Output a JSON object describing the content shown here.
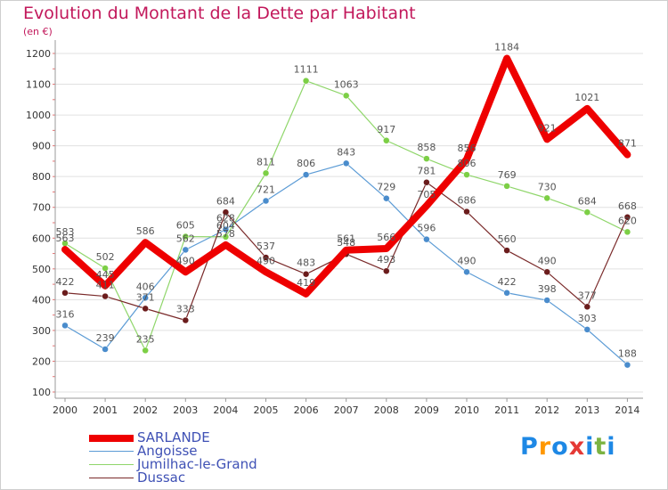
{
  "title": "Evolution du Montant de la Dette par Habitant",
  "unit_label": "(en €)",
  "logo_text": "Proxiti",
  "colors": {
    "title": "#c2185b",
    "axis_text": "#333333",
    "grid": "#e0e0e0",
    "legend_text": "#3f51b5",
    "label_text": "#555555"
  },
  "chart_data": {
    "type": "line",
    "title": "Evolution du Montant de la Dette par Habitant",
    "ylabel": "(en €)",
    "xlabel": "",
    "categories": [
      "2000",
      "2001",
      "2002",
      "2003",
      "2004",
      "2005",
      "2006",
      "2007",
      "2008",
      "2009",
      "2010",
      "2011",
      "2012",
      "2013",
      "2014"
    ],
    "ylim": [
      100,
      1200
    ],
    "yticks": [
      100,
      200,
      300,
      400,
      500,
      600,
      700,
      800,
      900,
      1000,
      1100,
      1200
    ],
    "grid": "horizontal",
    "legend_position": "bottom-left",
    "series": [
      {
        "name": "SARLANDE",
        "color": "#ee0000",
        "width": 8,
        "marker": "none",
        "values": [
          563,
          445,
          586,
          490,
          578,
          490,
          419,
          561,
          566,
          705,
          856,
          1184,
          921,
          1021,
          871
        ]
      },
      {
        "name": "Angoisse",
        "color": "#5b9bd5",
        "width": 1.2,
        "marker": "#4a8ccc",
        "values": [
          316,
          239,
          406,
          562,
          628,
          721,
          806,
          843,
          729,
          596,
          490,
          422,
          398,
          303,
          188
        ]
      },
      {
        "name": "Jumilhac-le-Grand",
        "color": "#8fd66a",
        "width": 1.2,
        "marker": "#7ccf45",
        "values": [
          583,
          502,
          235,
          605,
          604,
          811,
          1111,
          1063,
          917,
          858,
          806,
          769,
          730,
          684,
          620
        ]
      },
      {
        "name": "Dussac",
        "color": "#7a2a2a",
        "width": 1.2,
        "marker": "#6b1c1c",
        "values": [
          422,
          411,
          371,
          333,
          684,
          537,
          483,
          548,
          493,
          781,
          686,
          560,
          490,
          377,
          668
        ]
      }
    ]
  }
}
